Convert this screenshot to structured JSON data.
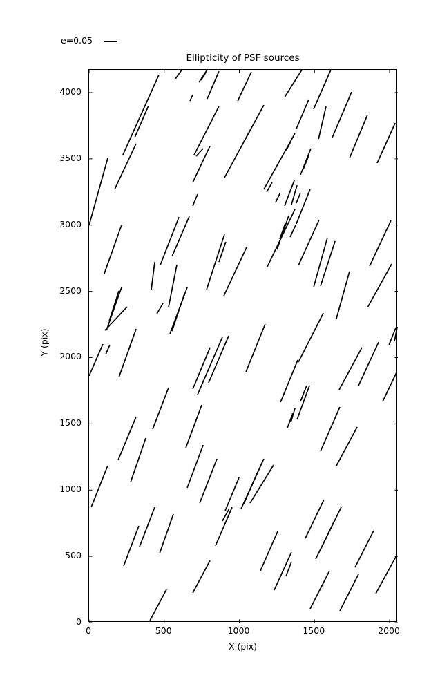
{
  "figure": {
    "background": "#ffffff",
    "line_color": "#000000"
  },
  "legend": {
    "label": "e=0.05"
  },
  "chart_data": {
    "type": "scatter",
    "subtype": "ellipticity-whisker-segments",
    "title": "Ellipticity of PSF sources",
    "xlabel": "X (pix)",
    "ylabel": "Y (pix)",
    "xlim": [
      0,
      2055
    ],
    "ylim": [
      0,
      4172
    ],
    "xticks": [
      0,
      500,
      1000,
      1500,
      2000
    ],
    "yticks": [
      0,
      500,
      1000,
      1500,
      2000,
      2500,
      3000,
      3500,
      4000
    ],
    "grid": false,
    "legend_position": "upper-left-outside",
    "legend_entries": [
      "e=0.05"
    ],
    "segments_format": "[x1, y1, x2, y2] in pixel data units",
    "segments": [
      [
        225,
        3530,
        465,
        4135
      ],
      [
        305,
        3665,
        395,
        3900
      ],
      [
        170,
        3270,
        313,
        3615
      ],
      [
        0,
        3000,
        124,
        3505
      ],
      [
        575,
        4105,
        616,
        4170
      ],
      [
        731,
        4078,
        786,
        4172
      ],
      [
        745,
        4094,
        777,
        4151
      ],
      [
        786,
        3953,
        864,
        4160
      ],
      [
        989,
        3937,
        1080,
        4156
      ],
      [
        1300,
        3963,
        1416,
        4172
      ],
      [
        901,
        3358,
        1163,
        3906
      ],
      [
        1030,
        3630,
        1076,
        3724
      ],
      [
        699,
        3530,
        864,
        3896
      ],
      [
        713,
        3520,
        759,
        3578
      ],
      [
        690,
        3322,
        805,
        3598
      ],
      [
        690,
        3145,
        722,
        3233
      ],
      [
        671,
        3937,
        690,
        3984
      ],
      [
        1163,
        3270,
        1370,
        3692
      ],
      [
        1310,
        3562,
        1343,
        3630
      ],
      [
        1182,
        3250,
        1218,
        3322
      ],
      [
        1241,
        3170,
        1270,
        3240
      ],
      [
        1301,
        3145,
        1366,
        3338
      ],
      [
        1347,
        3155,
        1384,
        3300
      ],
      [
        1494,
        3875,
        1609,
        4172
      ],
      [
        1380,
        3729,
        1462,
        3948
      ],
      [
        1527,
        3650,
        1577,
        3896
      ],
      [
        1618,
        3660,
        1747,
        4005
      ],
      [
        1733,
        3505,
        1853,
        3833
      ],
      [
        1917,
        3468,
        2037,
        3770
      ],
      [
        1407,
        3380,
        1476,
        3578
      ],
      [
        1425,
        3421,
        1462,
        3525
      ],
      [
        1379,
        3166,
        1407,
        3244
      ],
      [
        1379,
        3010,
        1471,
        3270
      ],
      [
        101,
        2634,
        216,
        3000
      ],
      [
        474,
        2700,
        598,
        3060
      ],
      [
        552,
        2764,
        667,
        3066
      ],
      [
        414,
        2514,
        437,
        2722
      ],
      [
        529,
        2383,
        584,
        2700
      ],
      [
        115,
        2206,
        216,
        2530
      ],
      [
        133,
        2274,
        198,
        2503
      ],
      [
        106,
        2206,
        253,
        2383
      ],
      [
        0,
        1862,
        92,
        2102
      ],
      [
        110,
        2023,
        138,
        2096
      ],
      [
        451,
        2331,
        492,
        2410
      ],
      [
        538,
        2180,
        653,
        2530
      ],
      [
        552,
        2200,
        635,
        2482
      ],
      [
        198,
        1851,
        313,
        2216
      ],
      [
        782,
        2514,
        901,
        2930
      ],
      [
        864,
        2722,
        910,
        2873
      ],
      [
        897,
        2467,
        1048,
        2832
      ],
      [
        1186,
        2686,
        1370,
        3119
      ],
      [
        1251,
        2816,
        1329,
        3072
      ],
      [
        1269,
        2894,
        1306,
        3014
      ],
      [
        1338,
        2910,
        1375,
        3000
      ],
      [
        1044,
        1893,
        1172,
        2253
      ],
      [
        1393,
        2696,
        1531,
        3040
      ],
      [
        1494,
        2530,
        1586,
        2905
      ],
      [
        1540,
        2540,
        1637,
        2879
      ],
      [
        1646,
        2295,
        1733,
        2650
      ],
      [
        1393,
        1966,
        1559,
        2336
      ],
      [
        1853,
        2378,
        2014,
        2707
      ],
      [
        1867,
        2691,
        2009,
        3035
      ],
      [
        1996,
        2096,
        2042,
        2227
      ],
      [
        2032,
        2122,
        2051,
        2232
      ],
      [
        690,
        1763,
        805,
        2076
      ],
      [
        722,
        1721,
        887,
        2154
      ],
      [
        795,
        1810,
        929,
        2164
      ],
      [
        1274,
        1664,
        1389,
        1982
      ],
      [
        1320,
        1471,
        1356,
        1580
      ],
      [
        1343,
        1512,
        1370,
        1617
      ],
      [
        644,
        1320,
        750,
        1643
      ],
      [
        653,
        1017,
        759,
        1340
      ],
      [
        736,
        902,
        851,
        1236
      ],
      [
        906,
        845,
        998,
        1095
      ],
      [
        1012,
        860,
        1163,
        1236
      ],
      [
        1030,
        897,
        1122,
        1137
      ],
      [
        1071,
        902,
        1228,
        1189
      ],
      [
        193,
        1226,
        313,
        1554
      ],
      [
        423,
        1460,
        529,
        1773
      ],
      [
        276,
        1059,
        377,
        1392
      ],
      [
        14,
        871,
        124,
        1184
      ],
      [
        1384,
        1533,
        1467,
        1789
      ],
      [
        1407,
        1669,
        1448,
        1789
      ],
      [
        1664,
        1757,
        1816,
        2076
      ],
      [
        1793,
        1789,
        1927,
        2117
      ],
      [
        1954,
        1669,
        2046,
        1888
      ],
      [
        1540,
        1293,
        1669,
        1627
      ],
      [
        1646,
        1184,
        1784,
        1476
      ],
      [
        230,
        428,
        331,
        730
      ],
      [
        336,
        574,
        437,
        871
      ],
      [
        469,
        522,
        561,
        819
      ],
      [
        405,
        16,
        515,
        250
      ],
      [
        841,
        579,
        952,
        871
      ],
      [
        887,
        767,
        933,
        860
      ],
      [
        1140,
        391,
        1255,
        688
      ],
      [
        1232,
        245,
        1347,
        532
      ],
      [
        1310,
        350,
        1347,
        459
      ],
      [
        690,
        224,
        805,
        469
      ],
      [
        1439,
        636,
        1563,
        928
      ],
      [
        1508,
        480,
        1678,
        871
      ],
      [
        1536,
        542,
        1632,
        767
      ],
      [
        1770,
        417,
        1894,
        694
      ],
      [
        1471,
        104,
        1600,
        391
      ],
      [
        1669,
        89,
        1793,
        365
      ],
      [
        1908,
        219,
        2046,
        506
      ]
    ]
  }
}
